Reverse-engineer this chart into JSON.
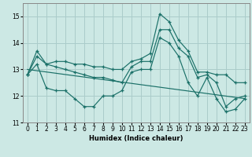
{
  "xlabel": "Humidex (Indice chaleur)",
  "background_color": "#cce8e4",
  "grid_color": "#aaccca",
  "line_color": "#1a7068",
  "x": [
    0,
    1,
    2,
    3,
    4,
    5,
    6,
    7,
    8,
    9,
    10,
    11,
    12,
    13,
    14,
    15,
    16,
    17,
    18,
    19,
    20,
    21,
    22,
    23
  ],
  "line_top": [
    12.8,
    13.7,
    13.2,
    13.3,
    13.3,
    13.2,
    13.2,
    13.1,
    13.1,
    13.0,
    13.0,
    13.3,
    13.4,
    13.6,
    15.1,
    14.8,
    14.1,
    13.7,
    12.9,
    12.9,
    12.8,
    12.8,
    12.5,
    12.5
  ],
  "line_mid": [
    12.8,
    13.5,
    13.2,
    13.1,
    13.0,
    12.9,
    12.8,
    12.7,
    12.7,
    12.6,
    12.5,
    13.1,
    13.3,
    13.3,
    14.5,
    14.5,
    13.8,
    13.5,
    12.7,
    12.8,
    12.5,
    11.6,
    11.9,
    12.0
  ],
  "line_bot": [
    12.8,
    13.2,
    12.3,
    12.2,
    12.2,
    11.9,
    11.6,
    11.6,
    12.0,
    12.0,
    12.2,
    12.9,
    13.0,
    13.0,
    14.2,
    14.0,
    13.5,
    12.5,
    12.0,
    12.7,
    11.9,
    11.4,
    11.5,
    11.9
  ],
  "trend_x": [
    0,
    23
  ],
  "trend_y": [
    13.0,
    11.9
  ],
  "ylim": [
    11.0,
    15.5
  ],
  "xlim": [
    -0.5,
    23.5
  ],
  "yticks": [
    11,
    12,
    13,
    14,
    15
  ],
  "xticks": [
    0,
    1,
    2,
    3,
    4,
    5,
    6,
    7,
    8,
    9,
    10,
    11,
    12,
    13,
    14,
    15,
    16,
    17,
    18,
    19,
    20,
    21,
    22,
    23
  ]
}
